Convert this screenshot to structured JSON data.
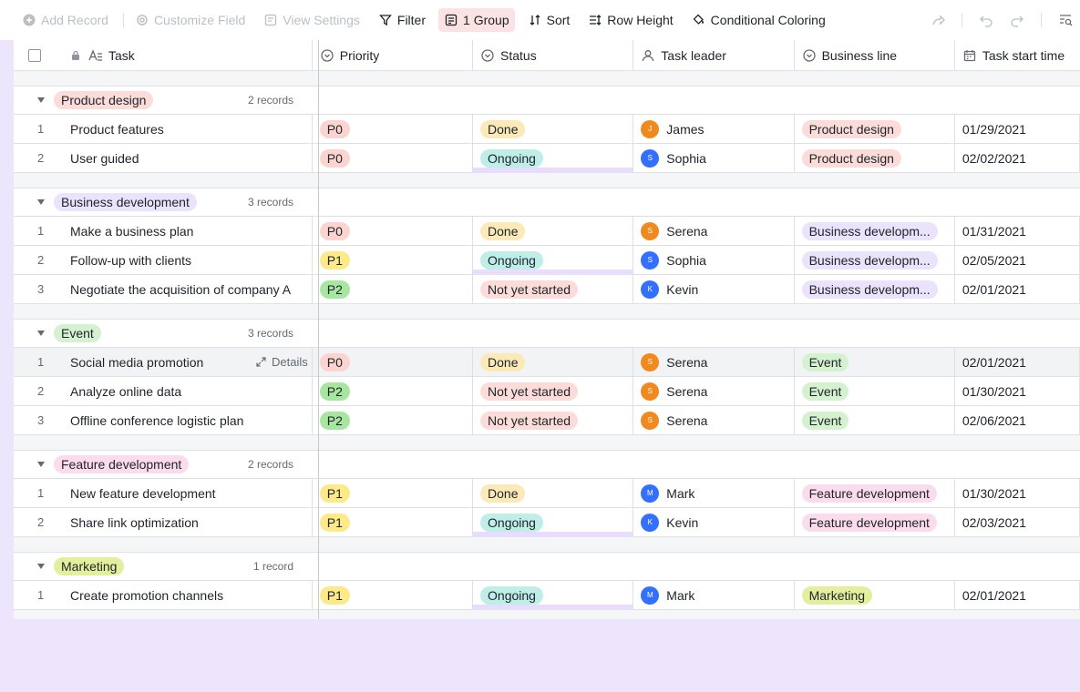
{
  "toolbar": {
    "add_record": "Add Record",
    "customize_field": "Customize Field",
    "view_settings": "View Settings",
    "filter": "Filter",
    "group": "1 Group",
    "sort": "Sort",
    "row_height": "Row Height",
    "conditional_coloring": "Conditional Coloring"
  },
  "columns": {
    "task": "Task",
    "priority": "Priority",
    "status": "Status",
    "leader": "Task leader",
    "business_line": "Business line",
    "start_time": "Task start time"
  },
  "colors": {
    "accent_bg": "#ece5fb",
    "p0": "#fbd4d0",
    "p1": "#fcea88",
    "p2": "#a7e6a1",
    "done": "#fbe9b8",
    "ongoing": "#bfeee9",
    "not_started": "#fbdcd8"
  },
  "groups": [
    {
      "name": "Product design",
      "count": "2 records",
      "color": "#fbdcd8",
      "rows": [
        {
          "num": "1",
          "task": "Product features",
          "priority": "P0",
          "status": "Done",
          "leader": "James",
          "leader_initial": "J",
          "leader_color": "#f08a1e",
          "biz": "Product design",
          "start": "01/29/2021"
        },
        {
          "num": "2",
          "task": "User guided",
          "priority": "P0",
          "status": "Ongoing",
          "leader": "Sophia",
          "leader_initial": "S",
          "leader_color": "#3370ff",
          "biz": "Product design",
          "start": "02/02/2021"
        }
      ]
    },
    {
      "name": "Business development",
      "count": "3 records",
      "color": "#ebe2fb",
      "rows": [
        {
          "num": "1",
          "task": "Make a business plan",
          "priority": "P0",
          "status": "Done",
          "leader": "Serena",
          "leader_initial": "S",
          "leader_color": "#f08a1e",
          "biz": "Business developm...",
          "start": "01/31/2021"
        },
        {
          "num": "2",
          "task": "Follow-up with clients",
          "priority": "P1",
          "status": "Ongoing",
          "leader": "Sophia",
          "leader_initial": "S",
          "leader_color": "#3370ff",
          "biz": "Business developm...",
          "start": "02/05/2021"
        },
        {
          "num": "3",
          "task": "Negotiate the acquisition of company A",
          "priority": "P2",
          "status": "Not yet started",
          "leader": "Kevin",
          "leader_initial": "K",
          "leader_color": "#3370ff",
          "biz": "Business developm...",
          "start": "02/01/2021"
        }
      ]
    },
    {
      "name": "Event",
      "count": "3 records",
      "color": "#d5f2d0",
      "rows": [
        {
          "num": "1",
          "task": "Social media promotion",
          "priority": "P0",
          "status": "Done",
          "leader": "Serena",
          "leader_initial": "S",
          "leader_color": "#f08a1e",
          "biz": "Event",
          "start": "02/01/2021",
          "details": "Details"
        },
        {
          "num": "2",
          "task": "Analyze online data",
          "priority": "P2",
          "status": "Not yet started",
          "leader": "Serena",
          "leader_initial": "S",
          "leader_color": "#f08a1e",
          "biz": "Event",
          "start": "01/30/2021"
        },
        {
          "num": "3",
          "task": "Offline conference logistic plan",
          "priority": "P2",
          "status": "Not yet started",
          "leader": "Serena",
          "leader_initial": "S",
          "leader_color": "#f08a1e",
          "biz": "Event",
          "start": "02/06/2021"
        }
      ]
    },
    {
      "name": "Feature development",
      "count": "2 records",
      "color": "#fbdcec",
      "rows": [
        {
          "num": "1",
          "task": "New feature development",
          "priority": "P1",
          "status": "Done",
          "leader": "Mark",
          "leader_initial": "M",
          "leader_color": "#3370ff",
          "biz": "Feature development",
          "start": "01/30/2021"
        },
        {
          "num": "2",
          "task": "Share link optimization",
          "priority": "P1",
          "status": "Ongoing",
          "leader": "Kevin",
          "leader_initial": "K",
          "leader_color": "#3370ff",
          "biz": "Feature development",
          "start": "02/03/2021"
        }
      ]
    },
    {
      "name": "Marketing",
      "count": "1 record",
      "color": "#e4ef9e",
      "rows": [
        {
          "num": "1",
          "task": "Create promotion channels",
          "priority": "P1",
          "status": "Ongoing",
          "leader": "Mark",
          "leader_initial": "M",
          "leader_color": "#3370ff",
          "biz": "Marketing",
          "start": "02/01/2021"
        }
      ]
    }
  ]
}
